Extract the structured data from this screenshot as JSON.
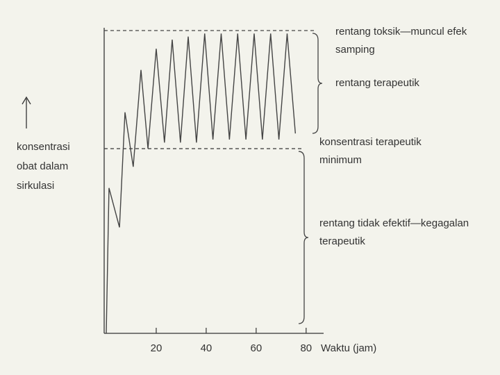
{
  "chart_data": {
    "type": "line",
    "y_label": [
      "konsentrasi",
      "obat dalam",
      "sirkulasi"
    ],
    "x_label": "Waktu (jam)",
    "x": [
      0,
      1.1,
      5.3,
      7.5,
      10.8,
      13.9,
      16.7,
      20,
      23.3,
      26.4,
      29.7,
      32.8,
      36.1,
      39.4,
      42.7,
      46,
      49.3,
      52.6,
      55.9,
      59.2,
      62.5,
      65.8,
      69.1,
      72.4,
      75.7
    ],
    "values": [
      0,
      48,
      35,
      73,
      55,
      87,
      61,
      94,
      63,
      97,
      63,
      98,
      63,
      99,
      64,
      99,
      64,
      99,
      64,
      99,
      64,
      99,
      64,
      99,
      66
    ],
    "color": "#444444",
    "xlim": [
      0,
      87
    ],
    "ylim": [
      0,
      100
    ],
    "xticks": [
      20,
      40,
      60,
      80
    ],
    "toxic_level": 100,
    "minimum_level": 61,
    "annotations": {
      "toxic": [
        "rentang toksik—muncul efek",
        "samping"
      ],
      "therapeutic": [
        "rentang terapeutik"
      ],
      "minimum": [
        "konsentrasi terapeutik",
        "minimum"
      ],
      "ineffective": [
        "rentang tidak efektif—kegagalan",
        "terapeutik"
      ]
    }
  }
}
